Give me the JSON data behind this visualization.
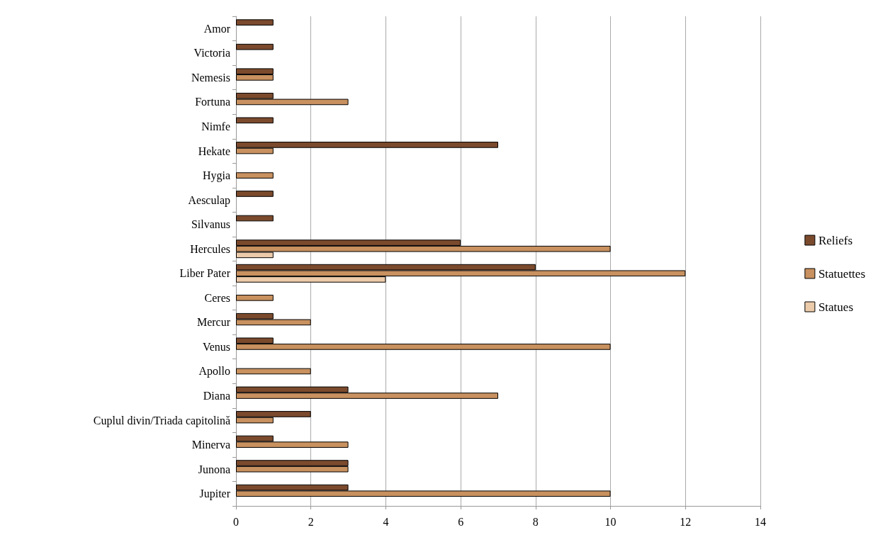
{
  "chart_data": {
    "type": "bar",
    "orientation": "horizontal",
    "categories": [
      "Amor",
      "Victoria",
      "Nemesis",
      "Fortuna",
      "Nimfe",
      "Hekate",
      "Hygia",
      "Aesculap",
      "Silvanus",
      "Hercules",
      "Liber Pater",
      "Ceres",
      "Mercur",
      "Venus",
      "Apollo",
      "Diana",
      "Cuplul divin/Triada capitolină",
      "Minerva",
      "Junona",
      "Jupiter"
    ],
    "series": [
      {
        "name": "Reliefs",
        "color": "#7b4a2d",
        "values": [
          1,
          1,
          1,
          1,
          1,
          7,
          null,
          1,
          1,
          6,
          8,
          null,
          1,
          1,
          null,
          3,
          2,
          1,
          3,
          3
        ]
      },
      {
        "name": "Statuettes",
        "color": "#c8915f",
        "values": [
          null,
          null,
          1,
          3,
          null,
          1,
          1,
          null,
          null,
          10,
          12,
          1,
          2,
          10,
          2,
          7,
          1,
          3,
          3,
          10
        ]
      },
      {
        "name": "Statues",
        "color": "#eccbaa",
        "values": [
          null,
          null,
          null,
          null,
          null,
          null,
          null,
          null,
          null,
          1,
          4,
          null,
          null,
          null,
          null,
          null,
          null,
          null,
          null,
          null
        ]
      }
    ],
    "xlim": [
      0,
      14
    ],
    "xticks": [
      0,
      2,
      4,
      6,
      8,
      10,
      12,
      14
    ],
    "grid": "x",
    "legend": "right"
  }
}
